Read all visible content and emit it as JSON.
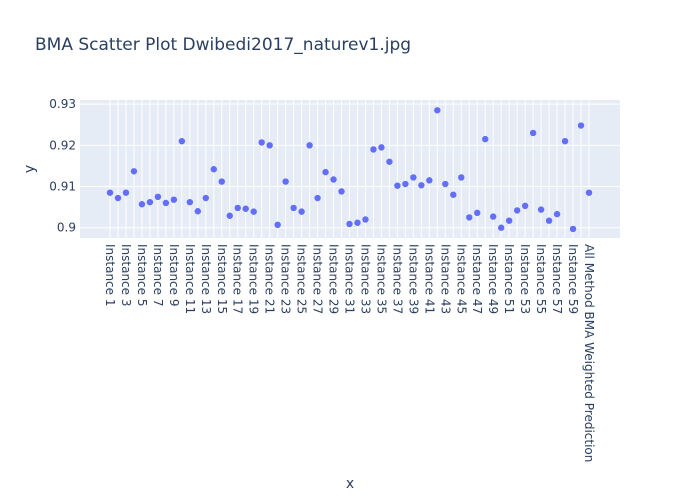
{
  "chart_data": {
    "type": "scatter",
    "title": "BMA Scatter Plot Dwibedi2017_naturev1.jpg",
    "xlabel": "x",
    "ylabel": "y",
    "ylim": [
      0.8975,
      0.931
    ],
    "yticks": [
      0.9,
      0.91,
      0.92,
      0.93
    ],
    "ytick_labels": [
      "0.9",
      "0.91",
      "0.92",
      "0.93"
    ],
    "grid": true,
    "marker_color": "#636efa",
    "plot_background": "#e5ecf6",
    "categories": [
      "Instance 1",
      "Instance 2",
      "Instance 3",
      "Instance 4",
      "Instance 5",
      "Instance 6",
      "Instance 7",
      "Instance 8",
      "Instance 9",
      "Instance 10",
      "Instance 11",
      "Instance 12",
      "Instance 13",
      "Instance 14",
      "Instance 15",
      "Instance 16",
      "Instance 17",
      "Instance 18",
      "Instance 19",
      "Instance 20",
      "Instance 21",
      "Instance 22",
      "Instance 23",
      "Instance 24",
      "Instance 25",
      "Instance 26",
      "Instance 27",
      "Instance 28",
      "Instance 29",
      "Instance 30",
      "Instance 31",
      "Instance 32",
      "Instance 33",
      "Instance 34",
      "Instance 35",
      "Instance 36",
      "Instance 37",
      "Instance 38",
      "Instance 39",
      "Instance 40",
      "Instance 41",
      "Instance 42",
      "Instance 43",
      "Instance 44",
      "Instance 45",
      "Instance 46",
      "Instance 47",
      "Instance 48",
      "Instance 49",
      "Instance 50",
      "Instance 51",
      "Instance 52",
      "Instance 53",
      "Instance 54",
      "Instance 55",
      "Instance 56",
      "Instance 57",
      "Instance 58",
      "Instance 59",
      "Instance 60",
      "All Method BMA Weighted Prediction"
    ],
    "tick_labels": [
      "Instance 1",
      "Instance 3",
      "Instance 5",
      "Instance 7",
      "Instance 9",
      "Instance 11",
      "Instance 13",
      "Instance 15",
      "Instance 17",
      "Instance 19",
      "Instance 21",
      "Instance 23",
      "Instance 25",
      "Instance 27",
      "Instance 29",
      "Instance 31",
      "Instance 33",
      "Instance 35",
      "Instance 37",
      "Instance 39",
      "Instance 41",
      "Instance 43",
      "Instance 45",
      "Instance 47",
      "Instance 49",
      "Instance 51",
      "Instance 53",
      "Instance 55",
      "Instance 57",
      "Instance 59",
      "All Method BMA Weighted Prediction"
    ],
    "tick_categories": [
      "Instance 1",
      "Instance 3",
      "Instance 5",
      "Instance 7",
      "Instance 9",
      "Instance 11",
      "Instance 13",
      "Instance 15",
      "Instance 17",
      "Instance 19",
      "Instance 21",
      "Instance 23",
      "Instance 25",
      "Instance 27",
      "Instance 29",
      "Instance 31",
      "Instance 33",
      "Instance 35",
      "Instance 37",
      "Instance 39",
      "Instance 41",
      "Instance 43",
      "Instance 45",
      "Instance 47",
      "Instance 49",
      "Instance 51",
      "Instance 53",
      "Instance 55",
      "Instance 57",
      "Instance 59",
      "All Method BMA Weighted Prediction"
    ],
    "values": [
      0.9085,
      0.9072,
      0.9085,
      0.9137,
      0.9057,
      0.9062,
      0.9075,
      0.906,
      0.9068,
      0.921,
      0.9062,
      0.904,
      0.9072,
      0.9142,
      0.9112,
      0.9029,
      0.9048,
      0.9046,
      0.9039,
      0.9207,
      0.92,
      0.9007,
      0.9112,
      0.9048,
      0.9039,
      0.92,
      0.9072,
      0.9135,
      0.9117,
      0.9088,
      0.9009,
      0.9012,
      0.902,
      0.919,
      0.9195,
      0.916,
      0.9102,
      0.9106,
      0.9122,
      0.9103,
      0.9115,
      0.9285,
      0.9106,
      0.908,
      0.9122,
      0.9025,
      0.9036,
      0.9215,
      0.9027,
      0.9,
      0.9017,
      0.9042,
      0.9053,
      0.923,
      0.9044,
      0.9017,
      0.9033,
      0.921,
      0.8997,
      0.9248,
      0.9085
    ]
  }
}
